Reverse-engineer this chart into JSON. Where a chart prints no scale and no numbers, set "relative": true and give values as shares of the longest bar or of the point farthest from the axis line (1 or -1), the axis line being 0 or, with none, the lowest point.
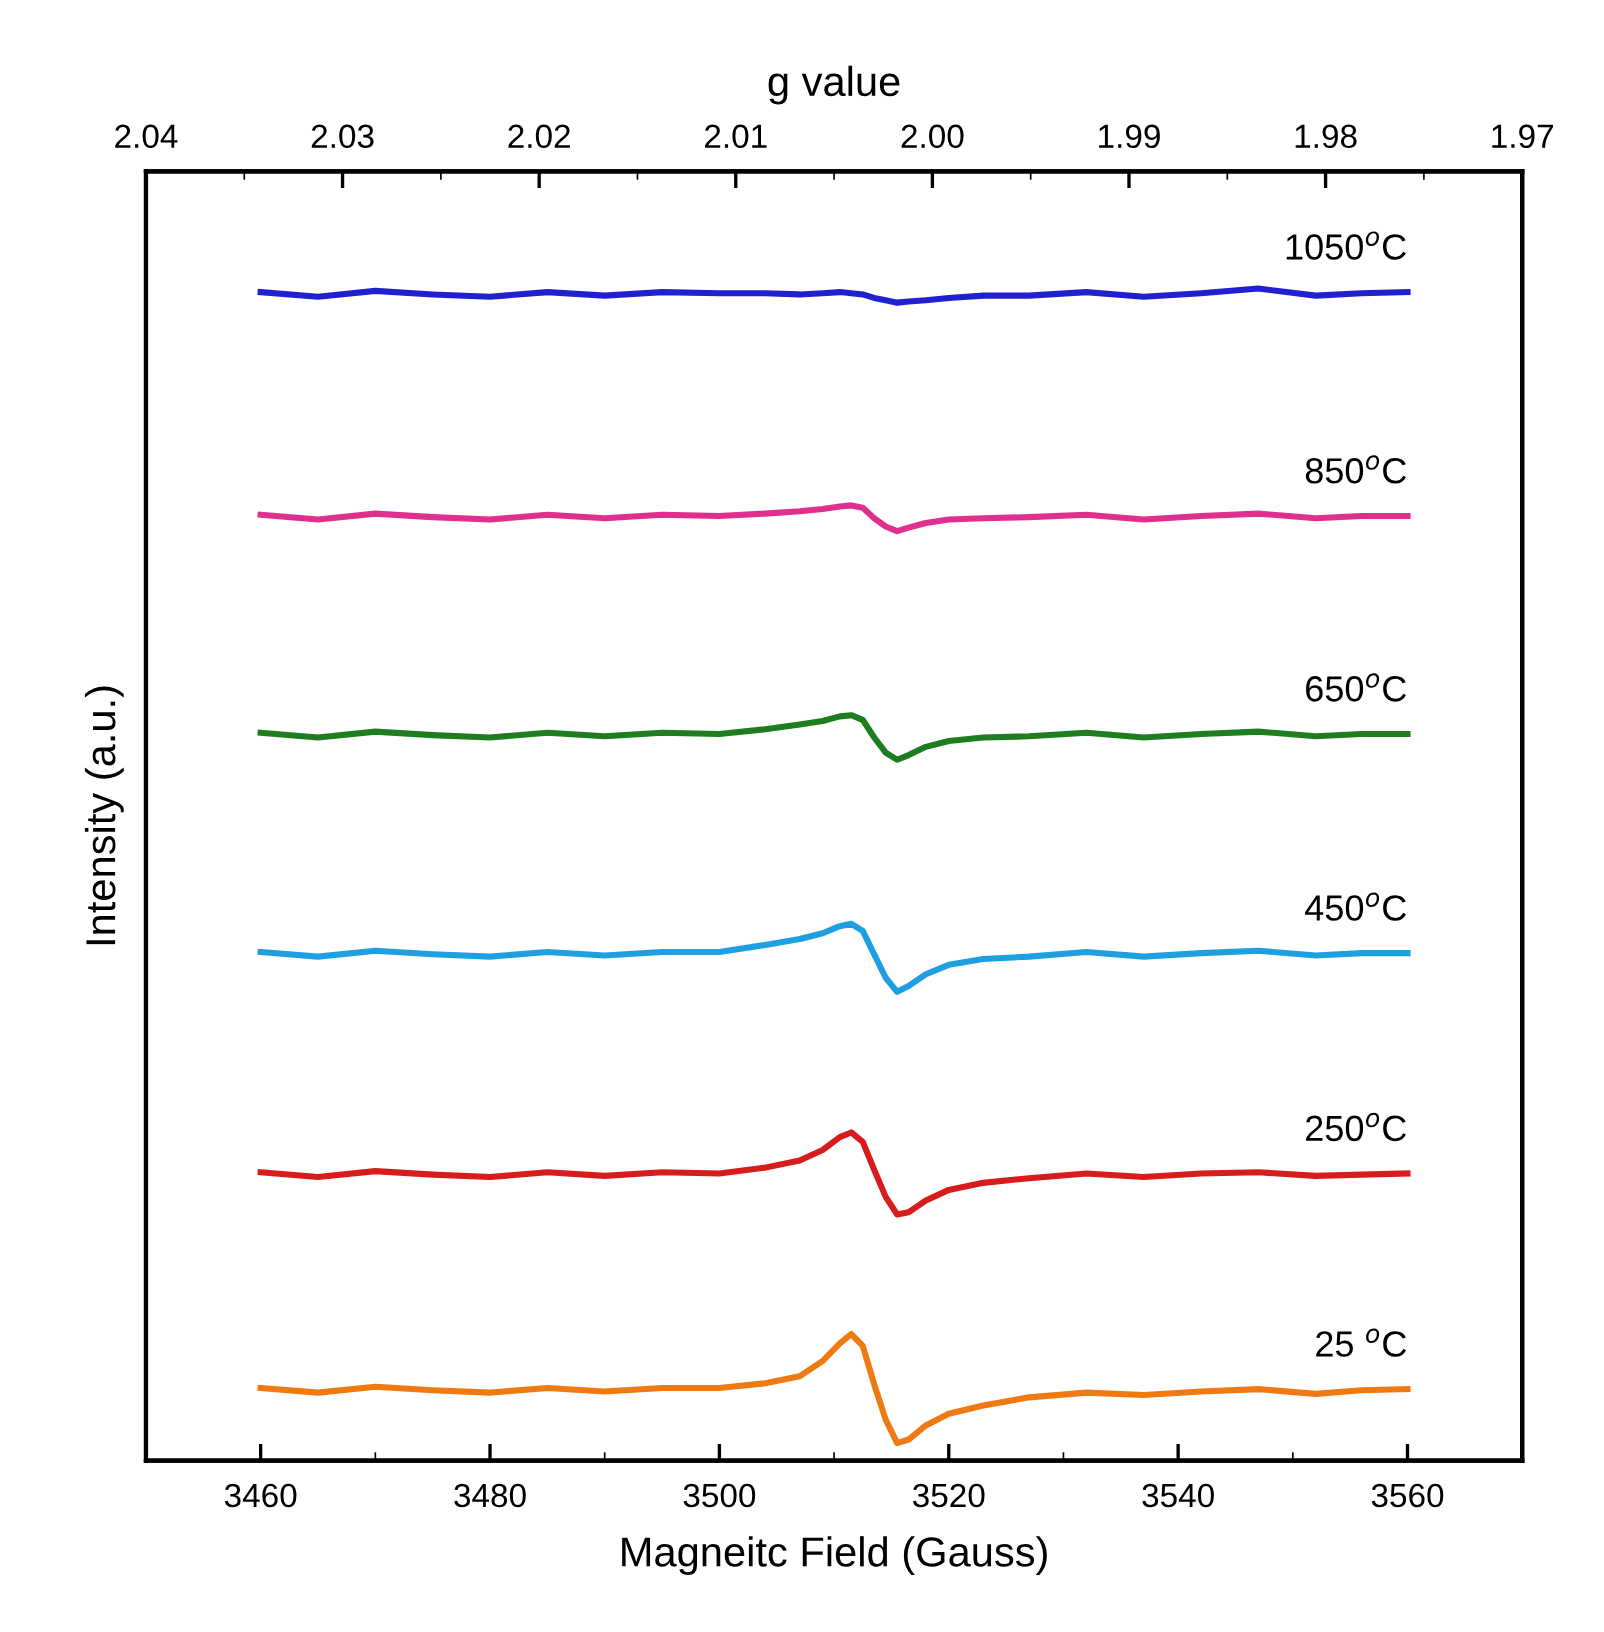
{
  "chart_data": {
    "type": "line",
    "relative": true,
    "xlabel": "Magneitc Field (Gauss)",
    "ylabel": "Intensity (a.u.)",
    "x2label": "g value",
    "xlim": [
      3450,
      3570
    ],
    "xticks": [
      3460,
      3480,
      3500,
      3520,
      3540,
      3560
    ],
    "x2lim": [
      2.04,
      1.97
    ],
    "x2ticks": [
      2.04,
      2.03,
      2.02,
      2.01,
      {
        "value": 2.0,
        "label": "2.00"
      },
      1.99,
      1.98,
      1.97
    ],
    "grid": false,
    "legend": false,
    "marker": "none",
    "line_style": "solid",
    "x": [
      3460,
      3465,
      3470,
      3475,
      3480,
      3485,
      3490,
      3495,
      3500,
      3504,
      3507,
      3509,
      3510.5,
      3511.5,
      3512.5,
      3513.5,
      3514.5,
      3515.5,
      3516.5,
      3518,
      3520,
      3523,
      3527,
      3532,
      3537,
      3542,
      3547,
      3552,
      3556,
      3560
    ],
    "series": [
      {
        "name": "1050$^{o}$C",
        "color": "#2020d0",
        "values": [
          0.997,
          0.993,
          0.998,
          0.995,
          0.993,
          0.997,
          0.994,
          0.997,
          0.996,
          0.996,
          0.995,
          0.996,
          0.997,
          0.996,
          0.995,
          0.992,
          0.99,
          0.988,
          0.989,
          0.99,
          0.992,
          0.994,
          0.994,
          0.997,
          0.993,
          0.996,
          1.0,
          0.994,
          0.996,
          0.997
        ]
      },
      {
        "name": "850$^{o}$C",
        "color": "#e0308f",
        "values": [
          0.807,
          0.803,
          0.808,
          0.805,
          0.803,
          0.807,
          0.804,
          0.807,
          0.806,
          0.808,
          0.81,
          0.812,
          0.814,
          0.815,
          0.813,
          0.804,
          0.797,
          0.793,
          0.796,
          0.8,
          0.803,
          0.804,
          0.805,
          0.807,
          0.803,
          0.806,
          0.808,
          0.804,
          0.806,
          0.806
        ]
      },
      {
        "name": "650$^{o}$C",
        "color": "#1e7d1e",
        "values": [
          0.621,
          0.617,
          0.622,
          0.619,
          0.617,
          0.621,
          0.618,
          0.621,
          0.62,
          0.624,
          0.628,
          0.631,
          0.635,
          0.636,
          0.632,
          0.617,
          0.604,
          0.598,
          0.602,
          0.609,
          0.614,
          0.617,
          0.618,
          0.621,
          0.617,
          0.62,
          0.622,
          0.618,
          0.62,
          0.62
        ]
      },
      {
        "name": "450$^{o}$C",
        "color": "#1ea0e0",
        "values": [
          0.434,
          0.43,
          0.435,
          0.432,
          0.43,
          0.434,
          0.431,
          0.434,
          0.434,
          0.44,
          0.445,
          0.45,
          0.456,
          0.458,
          0.452,
          0.432,
          0.412,
          0.4,
          0.405,
          0.415,
          0.423,
          0.428,
          0.43,
          0.434,
          0.43,
          0.433,
          0.435,
          0.431,
          0.433,
          0.433
        ]
      },
      {
        "name": "250$^{o}$C",
        "color": "#d81c1c",
        "values": [
          0.246,
          0.242,
          0.247,
          0.244,
          0.242,
          0.246,
          0.243,
          0.246,
          0.245,
          0.25,
          0.256,
          0.265,
          0.276,
          0.28,
          0.272,
          0.248,
          0.225,
          0.21,
          0.212,
          0.222,
          0.231,
          0.237,
          0.241,
          0.245,
          0.242,
          0.245,
          0.246,
          0.243,
          0.244,
          0.245
        ]
      },
      {
        "name": "25 $^{o}$C",
        "color": "#f07a12",
        "values": [
          0.062,
          0.058,
          0.063,
          0.06,
          0.058,
          0.062,
          0.059,
          0.062,
          0.062,
          0.066,
          0.072,
          0.085,
          0.1,
          0.108,
          0.098,
          0.065,
          0.035,
          0.015,
          0.018,
          0.03,
          0.04,
          0.047,
          0.054,
          0.058,
          0.056,
          0.059,
          0.061,
          0.057,
          0.06,
          0.061
        ]
      }
    ]
  }
}
